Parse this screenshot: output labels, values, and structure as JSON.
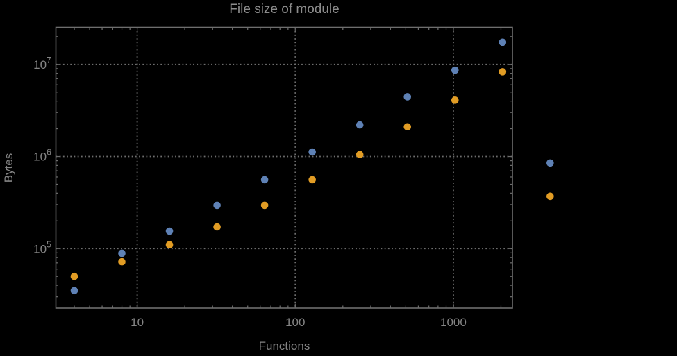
{
  "chart_data": {
    "type": "scatter",
    "title": "File size of module",
    "xlabel": "Functions",
    "ylabel": "Bytes",
    "x_scale": "log",
    "y_scale": "log",
    "legend": "none",
    "grid": "dotted lines at major ticks only",
    "marker": "filled circle",
    "x": [
      4,
      8,
      16,
      32,
      64,
      128,
      256,
      512,
      1024,
      2048,
      4096
    ],
    "series": [
      {
        "name": "series-blue",
        "color": "#5E81B5",
        "values": [
          35000,
          89000,
          155000,
          295000,
          560000,
          1120000,
          2200000,
          4450000,
          8650000,
          17400000,
          850000
        ]
      },
      {
        "name": "series-orange",
        "color": "#E19C24",
        "values": [
          50000,
          72000,
          110000,
          172000,
          295000,
          560000,
          1050000,
          2100000,
          4090000,
          8320000,
          370000
        ]
      }
    ],
    "x_major_ticks": [
      10,
      100,
      1000
    ],
    "x_tick_labels": [
      "10",
      "100",
      "1000"
    ],
    "y_major_ticks": [
      100000,
      1000000,
      10000000
    ],
    "y_tick_labels": [
      {
        "base": "10",
        "exp": "5"
      },
      {
        "base": "10",
        "exp": "6"
      },
      {
        "base": "10",
        "exp": "7"
      }
    ],
    "x_range": [
      3.06,
      2364
    ],
    "y_range": [
      22600,
      25200000
    ]
  },
  "style": {
    "background_color": "#000000",
    "frame_color": "#6e6e6e",
    "grid_color": "#6e6e6e",
    "tick_label_color": "#848484",
    "title_color": "#8c8c8c",
    "axis_label_color": "#848484"
  }
}
